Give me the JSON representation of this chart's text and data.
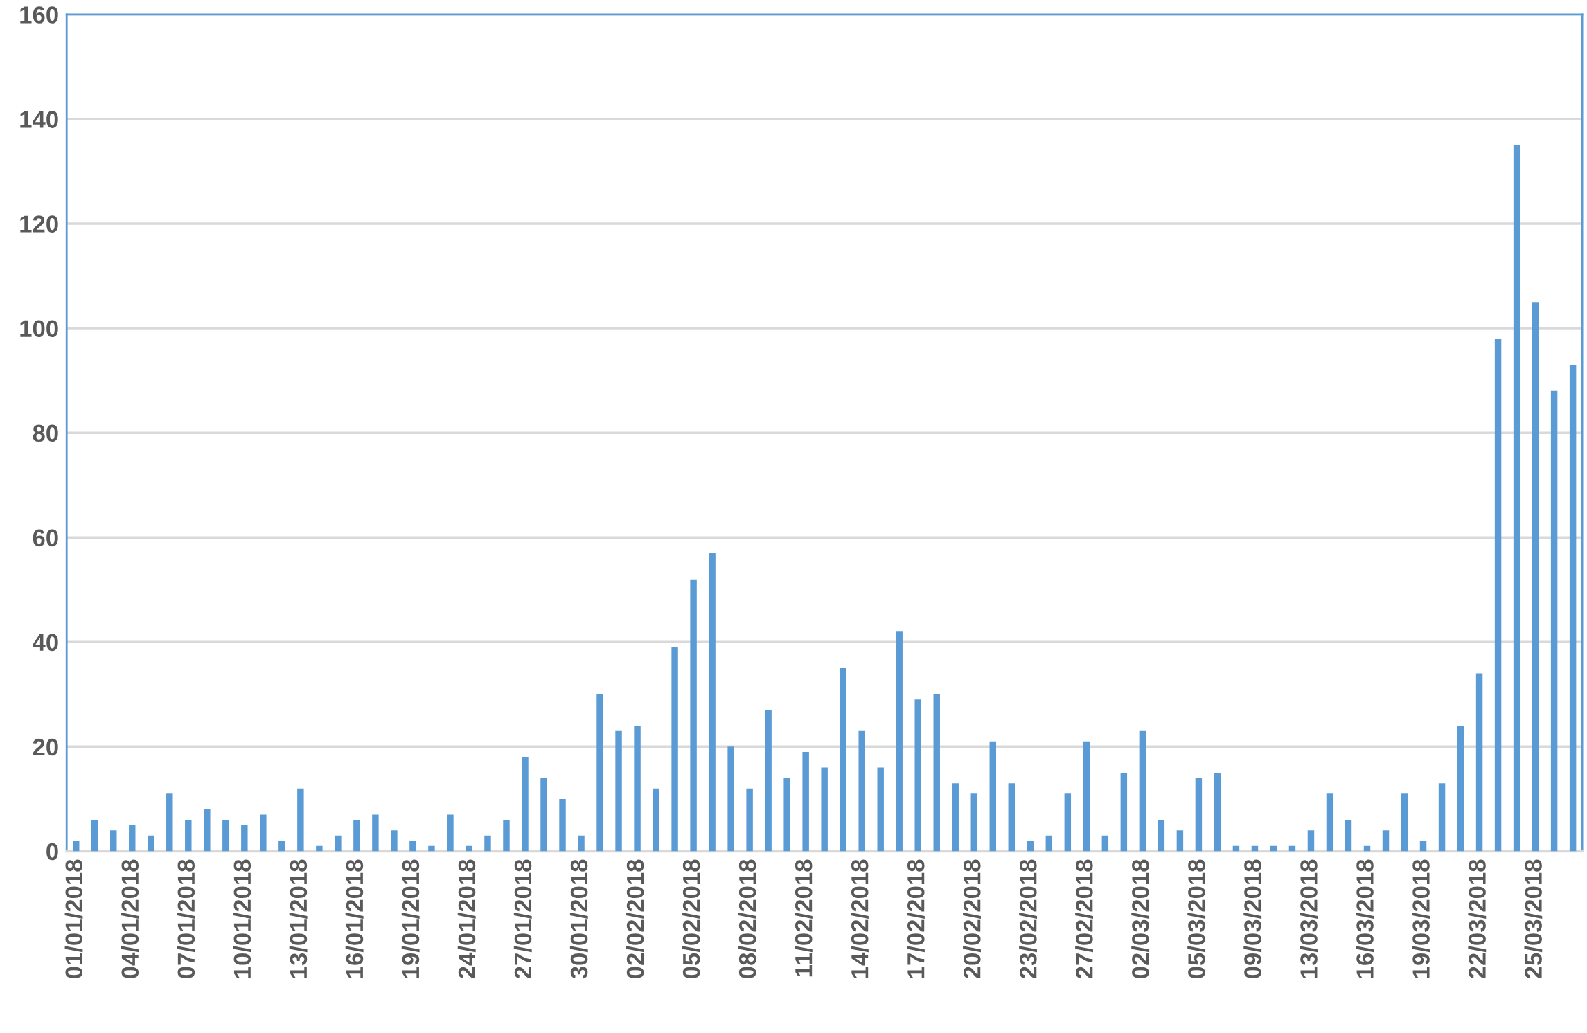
{
  "chart_data": {
    "type": "bar",
    "categories": [
      "01/01/2018",
      null,
      null,
      "04/01/2018",
      null,
      null,
      "07/01/2018",
      null,
      null,
      "10/01/2018",
      null,
      null,
      "13/01/2018",
      null,
      null,
      "16/01/2018",
      null,
      null,
      "19/01/2018",
      null,
      null,
      "24/01/2018",
      null,
      null,
      "27/01/2018",
      null,
      null,
      "30/01/2018",
      null,
      null,
      "02/02/2018",
      null,
      null,
      "05/02/2018",
      null,
      null,
      "08/02/2018",
      null,
      null,
      "11/02/2018",
      null,
      null,
      "14/02/2018",
      null,
      null,
      "17/02/2018",
      null,
      null,
      "20/02/2018",
      null,
      null,
      "23/02/2018",
      null,
      null,
      "27/02/2018",
      null,
      null,
      "02/03/2018",
      null,
      null,
      "05/03/2018",
      null,
      null,
      "09/03/2018",
      null,
      null,
      "13/03/2018",
      null,
      null,
      "16/03/2018",
      null,
      null,
      "19/03/2018",
      null,
      null,
      "22/03/2018",
      null,
      null,
      "25/03/2018",
      null,
      null
    ],
    "values": [
      2,
      6,
      4,
      5,
      3,
      11,
      6,
      8,
      6,
      5,
      7,
      2,
      12,
      1,
      3,
      6,
      7,
      4,
      2,
      1,
      7,
      1,
      3,
      6,
      18,
      14,
      10,
      3,
      30,
      23,
      24,
      12,
      39,
      52,
      57,
      20,
      12,
      27,
      14,
      19,
      16,
      35,
      23,
      16,
      42,
      29,
      30,
      13,
      11,
      21,
      13,
      2,
      3,
      11,
      21,
      3,
      15,
      23,
      6,
      4,
      14,
      15,
      1,
      1,
      1,
      1,
      4,
      11,
      6,
      1,
      4,
      11,
      2,
      13,
      24,
      34,
      98,
      135,
      105,
      88,
      93
    ],
    "color": "#5b9bd5",
    "ylim": [
      0,
      160
    ],
    "yticks": [
      0,
      20,
      40,
      60,
      80,
      100,
      120,
      140,
      160
    ],
    "grid": "y"
  }
}
